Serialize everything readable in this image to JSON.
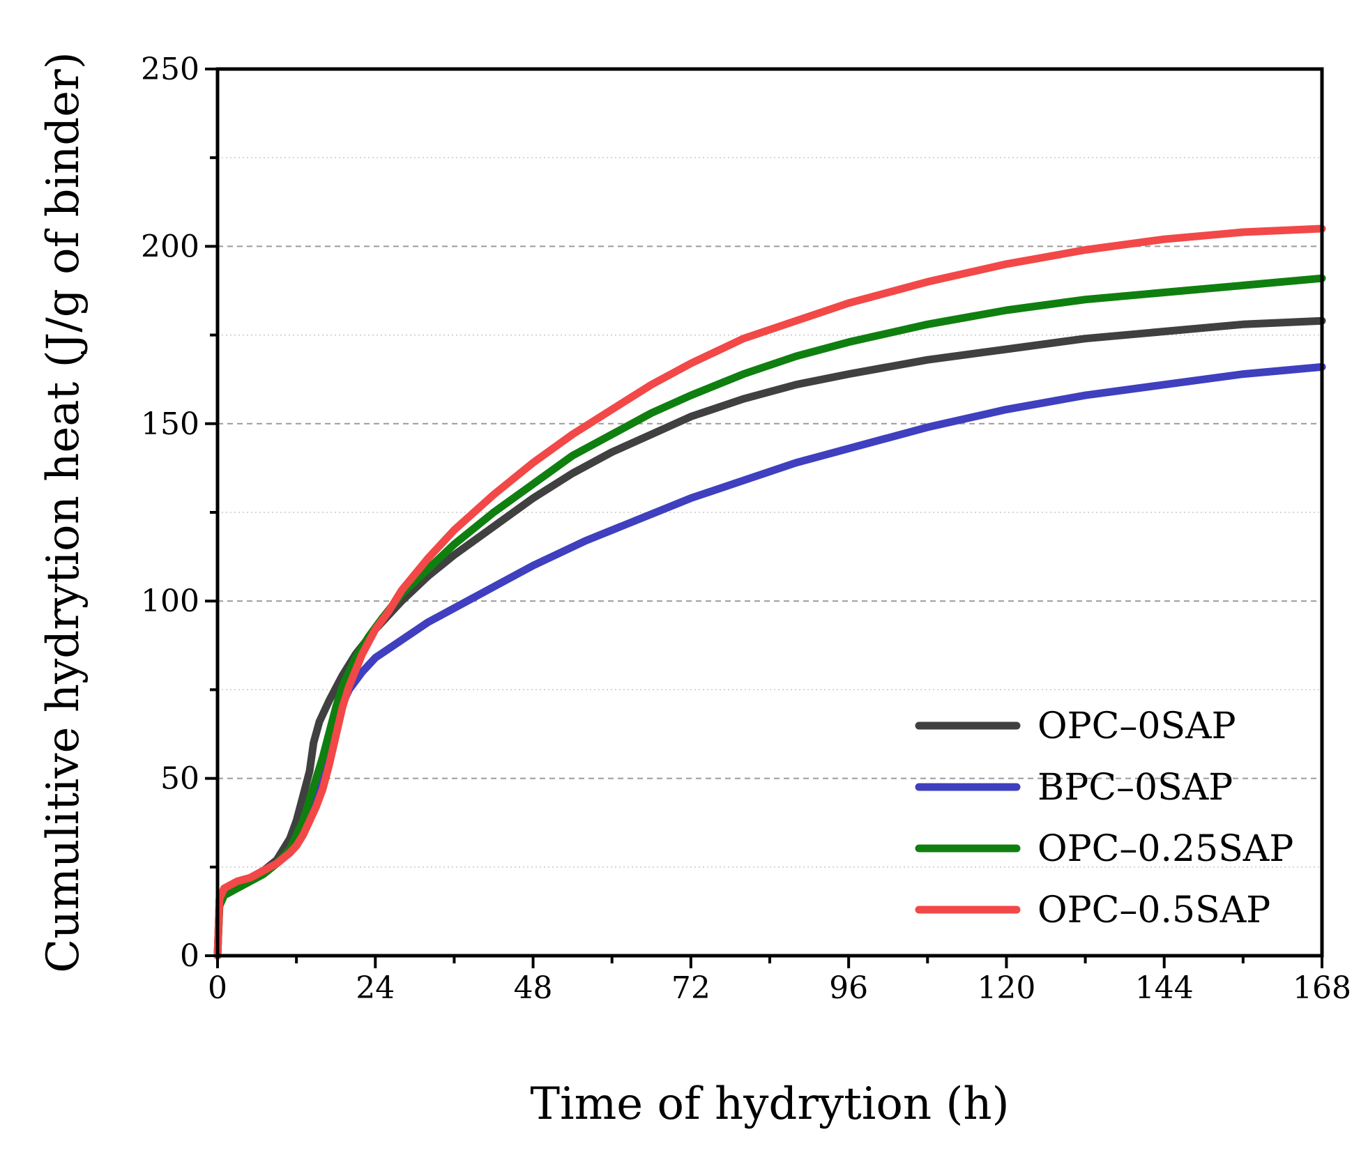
{
  "chart_data": {
    "type": "line",
    "title": "",
    "xlabel": "Time of hydrytion (h)",
    "ylabel": "Cumulitive hydrytion heat (J/g of binder)",
    "xlim": [
      0,
      168
    ],
    "ylim": [
      0,
      250
    ],
    "xticks": [
      "0",
      "24",
      "48",
      "72",
      "96",
      "120",
      "144",
      "168"
    ],
    "yticks": [
      "0",
      "50",
      "100",
      "150",
      "200",
      "250"
    ],
    "grid": "horizontal dashed (major), dotted (minor)",
    "legend_position": "bottom-right",
    "series": [
      {
        "name": "OPC–0SAP",
        "color": "#404040",
        "points": [
          [
            0,
            0
          ],
          [
            0.3,
            15
          ],
          [
            1,
            18
          ],
          [
            3,
            20
          ],
          [
            5,
            22
          ],
          [
            7,
            24
          ],
          [
            9,
            27
          ],
          [
            11,
            33
          ],
          [
            12,
            38
          ],
          [
            13,
            45
          ],
          [
            14,
            52
          ],
          [
            14.6,
            60
          ],
          [
            15.5,
            66
          ],
          [
            17,
            72
          ],
          [
            19,
            79
          ],
          [
            21,
            85
          ],
          [
            24,
            92
          ],
          [
            28,
            100
          ],
          [
            32,
            107
          ],
          [
            36,
            113
          ],
          [
            42,
            121
          ],
          [
            48,
            129
          ],
          [
            54,
            136
          ],
          [
            60,
            142
          ],
          [
            66,
            147
          ],
          [
            72,
            152
          ],
          [
            80,
            157
          ],
          [
            88,
            161
          ],
          [
            96,
            164
          ],
          [
            108,
            168
          ],
          [
            120,
            171
          ],
          [
            132,
            174
          ],
          [
            144,
            176
          ],
          [
            156,
            178
          ],
          [
            168,
            179
          ]
        ]
      },
      {
        "name": "BPC–0SAP",
        "color": "#3f3fbf",
        "points": [
          [
            0,
            0
          ],
          [
            0.3,
            16
          ],
          [
            1,
            18
          ],
          [
            3,
            20
          ],
          [
            5,
            22
          ],
          [
            7,
            24
          ],
          [
            9,
            26
          ],
          [
            11,
            29
          ],
          [
            13,
            35
          ],
          [
            14,
            40
          ],
          [
            15,
            46
          ],
          [
            16,
            52
          ],
          [
            17,
            60
          ],
          [
            18,
            66
          ],
          [
            19,
            71
          ],
          [
            20,
            75
          ],
          [
            22,
            80
          ],
          [
            24,
            84
          ],
          [
            28,
            89
          ],
          [
            32,
            94
          ],
          [
            36,
            98
          ],
          [
            42,
            104
          ],
          [
            48,
            110
          ],
          [
            56,
            117
          ],
          [
            64,
            123
          ],
          [
            72,
            129
          ],
          [
            80,
            134
          ],
          [
            88,
            139
          ],
          [
            96,
            143
          ],
          [
            108,
            149
          ],
          [
            120,
            154
          ],
          [
            132,
            158
          ],
          [
            144,
            161
          ],
          [
            156,
            164
          ],
          [
            168,
            166
          ]
        ]
      },
      {
        "name": "OPC–0.25SAP",
        "color": "#0f7f0f",
        "points": [
          [
            0,
            0
          ],
          [
            0.3,
            14
          ],
          [
            1,
            17
          ],
          [
            3,
            19
          ],
          [
            5,
            21
          ],
          [
            7,
            23
          ],
          [
            9,
            26
          ],
          [
            11,
            30
          ],
          [
            12,
            34
          ],
          [
            13,
            38
          ],
          [
            14,
            44
          ],
          [
            15,
            50
          ],
          [
            16,
            56
          ],
          [
            17,
            63
          ],
          [
            18,
            70
          ],
          [
            19,
            76
          ],
          [
            21,
            84
          ],
          [
            23,
            90
          ],
          [
            25,
            95
          ],
          [
            28,
            102
          ],
          [
            32,
            109
          ],
          [
            36,
            116
          ],
          [
            42,
            125
          ],
          [
            48,
            133
          ],
          [
            54,
            141
          ],
          [
            60,
            147
          ],
          [
            66,
            153
          ],
          [
            72,
            158
          ],
          [
            80,
            164
          ],
          [
            88,
            169
          ],
          [
            96,
            173
          ],
          [
            108,
            178
          ],
          [
            120,
            182
          ],
          [
            132,
            185
          ],
          [
            144,
            187
          ],
          [
            156,
            189
          ],
          [
            168,
            191
          ]
        ]
      },
      {
        "name": "OPC–0.5SAP",
        "color": "#f24848",
        "points": [
          [
            0,
            0
          ],
          [
            0.3,
            16
          ],
          [
            1,
            19
          ],
          [
            3,
            21
          ],
          [
            5,
            22
          ],
          [
            7,
            24
          ],
          [
            9,
            26
          ],
          [
            11,
            29
          ],
          [
            12,
            31
          ],
          [
            13,
            34
          ],
          [
            14,
            38
          ],
          [
            15,
            42
          ],
          [
            16,
            47
          ],
          [
            17,
            54
          ],
          [
            18,
            62
          ],
          [
            19,
            70
          ],
          [
            20,
            76
          ],
          [
            22,
            85
          ],
          [
            24,
            92
          ],
          [
            26,
            97
          ],
          [
            28,
            103
          ],
          [
            32,
            112
          ],
          [
            36,
            120
          ],
          [
            42,
            130
          ],
          [
            48,
            139
          ],
          [
            54,
            147
          ],
          [
            60,
            154
          ],
          [
            66,
            161
          ],
          [
            72,
            167
          ],
          [
            80,
            174
          ],
          [
            88,
            179
          ],
          [
            96,
            184
          ],
          [
            108,
            190
          ],
          [
            120,
            195
          ],
          [
            132,
            199
          ],
          [
            144,
            202
          ],
          [
            156,
            204
          ],
          [
            168,
            205
          ]
        ]
      }
    ]
  }
}
